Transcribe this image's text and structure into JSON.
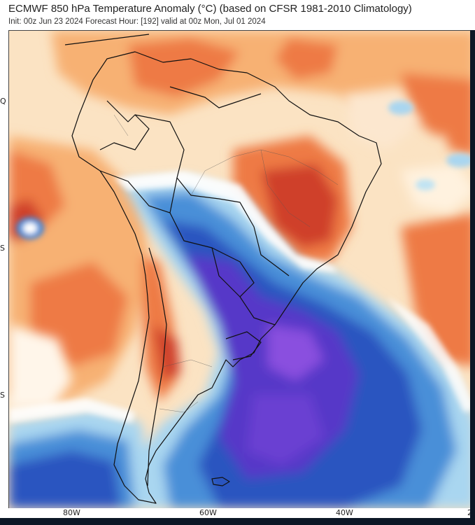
{
  "header": {
    "title": "ECMWF 850 hPa Temperature Anomaly (°C) (based on CFSR 1981-2010 Climatology)",
    "subtitle": "Init: 00z Jun 23 2024   Forecast Hour: [192]   valid at 00z Mon, Jul 01 2024"
  },
  "map": {
    "region": "South America",
    "variable": "850 hPa Temperature Anomaly",
    "longitude_labels": [
      "80W",
      "60W",
      "40W",
      "2"
    ],
    "latitude_labels": [
      "Q",
      "S",
      "S"
    ],
    "colors": {
      "warm_light": "#fbe3c3",
      "warm_mid": "#f7b173",
      "warm_strong": "#ee7a45",
      "warm_deep": "#cf3f2a",
      "neutral": "#ffffff",
      "cool_light": "#a9d6f0",
      "cool_mid": "#4a8fd8",
      "cool_strong": "#2b55c0",
      "cool_deep": "#5638c8",
      "cool_violet": "#8a4fdf",
      "borders": "#111111"
    }
  }
}
